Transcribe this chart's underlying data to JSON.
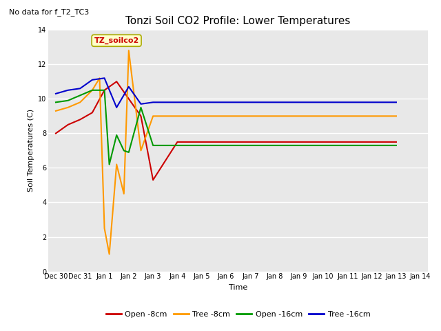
{
  "title": "Tonzi Soil CO2 Profile: Lower Temperatures",
  "subtitle": "No data for f_T2_TC3",
  "xlabel": "Time",
  "ylabel": "Soil Temperatures (C)",
  "ylim": [
    0,
    14
  ],
  "xlim": [
    -0.3,
    15.3
  ],
  "annotation_label": "TZ_soilco2",
  "fig_bg_color": "#ffffff",
  "plot_bg_color": "#e8e8e8",
  "legend": [
    {
      "label": "Open -8cm",
      "color": "#cc0000"
    },
    {
      "label": "Tree -8cm",
      "color": "#ff9900"
    },
    {
      "label": "Open -16cm",
      "color": "#009900"
    },
    {
      "label": "Tree -16cm",
      "color": "#0000cc"
    }
  ],
  "series": {
    "open_8cm": {
      "color": "#cc0000",
      "x": [
        0,
        0.5,
        1.0,
        1.5,
        2.0,
        2.5,
        3.0,
        3.5,
        4.0,
        5.0,
        6.0,
        7.0,
        8.0,
        9.0,
        10.0,
        11.0,
        12.0,
        13.0,
        14.0
      ],
      "y": [
        8.0,
        8.5,
        8.8,
        9.2,
        10.5,
        11.0,
        10.0,
        9.0,
        5.3,
        7.5,
        7.5,
        7.5,
        7.5,
        7.5,
        7.5,
        7.5,
        7.5,
        7.5,
        7.5
      ]
    },
    "tree_8cm": {
      "color": "#ff9900",
      "x": [
        0,
        0.5,
        1.0,
        1.5,
        1.8,
        2.0,
        2.2,
        2.5,
        2.8,
        3.0,
        3.5,
        4.0,
        5.0,
        6.0,
        7.0,
        8.0,
        9.0,
        10.0,
        11.0,
        12.0,
        13.0,
        14.0
      ],
      "y": [
        9.3,
        9.5,
        9.8,
        10.5,
        11.2,
        2.5,
        1.0,
        6.2,
        4.5,
        12.8,
        7.0,
        9.0,
        9.0,
        9.0,
        9.0,
        9.0,
        9.0,
        9.0,
        9.0,
        9.0,
        9.0,
        9.0
      ]
    },
    "open_16cm": {
      "color": "#009900",
      "x": [
        0,
        0.5,
        1.0,
        1.5,
        2.0,
        2.2,
        2.5,
        2.8,
        3.0,
        3.5,
        4.0,
        5.0,
        6.0,
        7.0,
        8.0,
        9.0,
        10.0,
        11.0,
        12.0,
        13.0,
        14.0
      ],
      "y": [
        9.8,
        9.9,
        10.2,
        10.5,
        10.5,
        6.2,
        7.9,
        7.0,
        6.9,
        9.5,
        7.3,
        7.3,
        7.3,
        7.3,
        7.3,
        7.3,
        7.3,
        7.3,
        7.3,
        7.3,
        7.3
      ]
    },
    "tree_16cm": {
      "color": "#0000cc",
      "x": [
        0,
        0.5,
        1.0,
        1.5,
        2.0,
        2.5,
        3.0,
        3.5,
        4.0,
        5.0,
        6.0,
        7.0,
        8.0,
        9.0,
        10.0,
        11.0,
        12.0,
        13.0,
        14.0
      ],
      "y": [
        10.3,
        10.5,
        10.6,
        11.1,
        11.2,
        9.5,
        10.7,
        9.7,
        9.8,
        9.8,
        9.8,
        9.8,
        9.8,
        9.8,
        9.8,
        9.8,
        9.8,
        9.8,
        9.8
      ]
    }
  },
  "xtick_labels": [
    "Dec 30",
    "Dec 31",
    "Jan 1",
    "Jan 2",
    "Jan 3",
    "Jan 4",
    "Jan 5",
    "Jan 6",
    "Jan 7",
    "Jan 8",
    "Jan 9",
    "Jan 10",
    "Jan 11",
    "Jan 12",
    "Jan 13",
    "Jan 14"
  ],
  "xtick_positions": [
    0,
    1,
    2,
    3,
    4,
    5,
    6,
    7,
    8,
    9,
    10,
    11,
    12,
    13,
    14,
    15
  ],
  "ytick_labels": [
    "0",
    "2",
    "4",
    "6",
    "8",
    "10",
    "12",
    "14"
  ],
  "ytick_positions": [
    0,
    2,
    4,
    6,
    8,
    10,
    12,
    14
  ],
  "title_fontsize": 11,
  "subtitle_fontsize": 8,
  "tick_fontsize": 7,
  "label_fontsize": 8,
  "annotation_fontsize": 8,
  "legend_fontsize": 8
}
